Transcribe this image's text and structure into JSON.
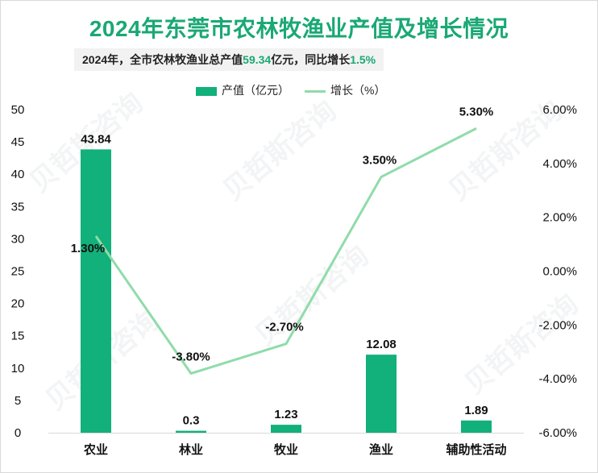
{
  "title": "2024年东莞市农林牧渔业产值及增长情况",
  "subtitle": {
    "prefix": "2024年，全市农林牧渔业总产值",
    "total": "59.34",
    "mid": "亿元，同比增长",
    "growth": "1.5%"
  },
  "legend": {
    "bar_label": "产值（亿元）",
    "line_label": "增长（%）"
  },
  "watermark": "贝哲斯咨询",
  "colors": {
    "bar": "#12b07a",
    "line": "#8fdcaa",
    "accent": "#1aa874"
  },
  "chart_data": {
    "type": "bar+line",
    "categories": [
      "农业",
      "林业",
      "牧业",
      "渔业",
      "辅助性活动"
    ],
    "series": [
      {
        "name": "产值（亿元）",
        "type": "bar",
        "axis": "left",
        "values": [
          43.84,
          0.3,
          1.23,
          12.08,
          1.89
        ],
        "labels": [
          "43.84",
          "0.3",
          "1.23",
          "12.08",
          "1.89"
        ]
      },
      {
        "name": "增长（%）",
        "type": "line",
        "axis": "right",
        "values": [
          1.3,
          -3.8,
          -2.7,
          3.5,
          5.3
        ],
        "labels": [
          "1.30%",
          "-3.80%",
          "-2.70%",
          "3.50%",
          "5.30%"
        ]
      }
    ],
    "y_left": {
      "min": 0,
      "max": 50,
      "ticks": [
        "0",
        "5",
        "10",
        "15",
        "20",
        "25",
        "30",
        "35",
        "40",
        "45",
        "50"
      ]
    },
    "y_right": {
      "min": -6,
      "max": 6,
      "ticks": [
        "-6.00%",
        "-4.00%",
        "-2.00%",
        "0.00%",
        "2.00%",
        "4.00%",
        "6.00%"
      ]
    },
    "grid": false,
    "legend_position": "top-center"
  }
}
